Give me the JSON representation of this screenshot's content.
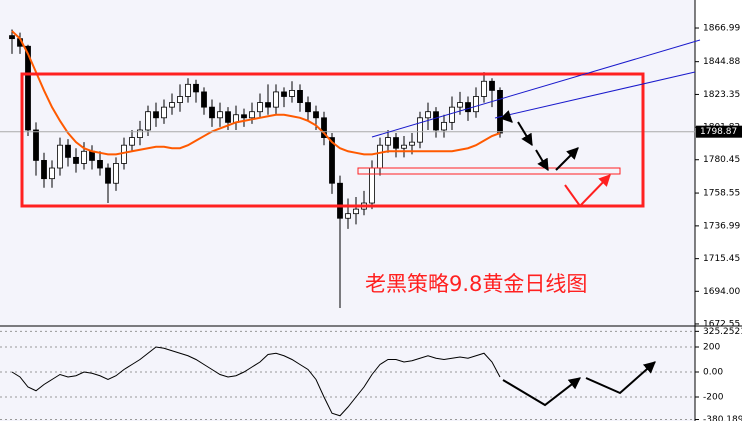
{
  "chart_data": [
    {
      "type": "candlestick",
      "open": [
        1862,
        1860,
        1855,
        1800,
        1780,
        1768,
        1775,
        1790,
        1782,
        1778,
        1786,
        1780,
        1775,
        1765,
        1778,
        1790,
        1795,
        1800,
        1812,
        1808,
        1815,
        1818,
        1822,
        1830,
        1825,
        1815,
        1808,
        1812,
        1805,
        1810,
        1808,
        1812,
        1818,
        1815,
        1825,
        1822,
        1826,
        1818,
        1812,
        1808,
        1795,
        1765,
        1742,
        1745,
        1748,
        1752,
        1775,
        1790,
        1795,
        1788,
        1790,
        1792,
        1808,
        1812,
        1800,
        1805,
        1815,
        1818,
        1812,
        1822,
        1832,
        1826
      ],
      "high": [
        1866,
        1864,
        1856,
        1805,
        1785,
        1780,
        1795,
        1794,
        1788,
        1792,
        1790,
        1786,
        1778,
        1782,
        1795,
        1800,
        1806,
        1816,
        1818,
        1820,
        1824,
        1830,
        1834,
        1833,
        1828,
        1820,
        1818,
        1815,
        1816,
        1814,
        1818,
        1824,
        1830,
        1830,
        1828,
        1832,
        1830,
        1822,
        1816,
        1812,
        1798,
        1770,
        1755,
        1756,
        1760,
        1780,
        1795,
        1800,
        1798,
        1796,
        1798,
        1812,
        1818,
        1815,
        1810,
        1822,
        1825,
        1822,
        1828,
        1838,
        1834,
        1828
      ],
      "low": [
        1850,
        1850,
        1796,
        1770,
        1762,
        1762,
        1770,
        1776,
        1772,
        1774,
        1774,
        1770,
        1752,
        1760,
        1774,
        1786,
        1790,
        1796,
        1802,
        1804,
        1810,
        1812,
        1818,
        1818,
        1810,
        1802,
        1802,
        1800,
        1800,
        1802,
        1804,
        1808,
        1810,
        1810,
        1815,
        1818,
        1812,
        1806,
        1800,
        1790,
        1758,
        1683,
        1735,
        1738,
        1744,
        1748,
        1770,
        1785,
        1782,
        1782,
        1784,
        1788,
        1800,
        1795,
        1795,
        1800,
        1810,
        1806,
        1808,
        1818,
        1815,
        1795
      ],
      "close": [
        1860,
        1855,
        1800,
        1780,
        1768,
        1775,
        1790,
        1782,
        1778,
        1786,
        1780,
        1775,
        1765,
        1778,
        1790,
        1795,
        1800,
        1812,
        1808,
        1815,
        1818,
        1822,
        1830,
        1825,
        1815,
        1808,
        1812,
        1805,
        1810,
        1808,
        1812,
        1818,
        1815,
        1825,
        1822,
        1826,
        1818,
        1812,
        1808,
        1795,
        1765,
        1742,
        1745,
        1748,
        1752,
        1775,
        1790,
        1795,
        1788,
        1790,
        1792,
        1808,
        1812,
        1800,
        1805,
        1815,
        1818,
        1812,
        1822,
        1832,
        1826,
        1798
      ],
      "series": [
        {
          "color": "#ff5a00",
          "values": [
            1865,
            1860,
            1850,
            1838,
            1826,
            1815,
            1806,
            1798,
            1792,
            1788,
            1786,
            1785,
            1784,
            1784,
            1785,
            1786,
            1787,
            1788,
            1789,
            1789,
            1788,
            1788,
            1790,
            1793,
            1796,
            1799,
            1801,
            1803,
            1805,
            1806,
            1807,
            1808,
            1809,
            1810,
            1810,
            1809,
            1808,
            1806,
            1803,
            1798,
            1792,
            1788,
            1786,
            1785,
            1784,
            1784,
            1785,
            1786,
            1786,
            1786,
            1786,
            1786,
            1786,
            1786,
            1786,
            1786,
            1787,
            1788,
            1790,
            1793,
            1796,
            1798
          ]
        }
      ],
      "ylim": [
        1671.2,
        1885.4
      ],
      "yticks": [
        1866.99,
        1844.88,
        1823.35,
        1801.82,
        1780.45,
        1758.55,
        1736.99,
        1715.45,
        {
          "value": 1694.0,
          "label": "1694.00"
        },
        1672.55
      ],
      "last_price": 1798.87,
      "annotation": "老黑策略9.8黄金日线图"
    },
    {
      "type": "line",
      "values": [
        0,
        -40,
        -120,
        -150,
        -100,
        -60,
        -20,
        -40,
        -30,
        0,
        -10,
        -30,
        -60,
        -30,
        20,
        60,
        100,
        150,
        200,
        190,
        170,
        150,
        130,
        100,
        60,
        20,
        -20,
        -40,
        -30,
        0,
        40,
        80,
        140,
        150,
        130,
        100,
        60,
        20,
        -60,
        -200,
        -330,
        -350,
        -280,
        -200,
        -120,
        -20,
        60,
        100,
        100,
        80,
        90,
        110,
        130,
        110,
        100,
        110,
        120,
        110,
        130,
        150,
        80,
        -40
      ],
      "color": "#000000",
      "ylim": [
        -392,
        368
      ],
      "yticks": [
        325.2521,
        200,
        {
          "value": 0,
          "label": "0.00"
        },
        -200,
        -380.189
      ]
    }
  ]
}
